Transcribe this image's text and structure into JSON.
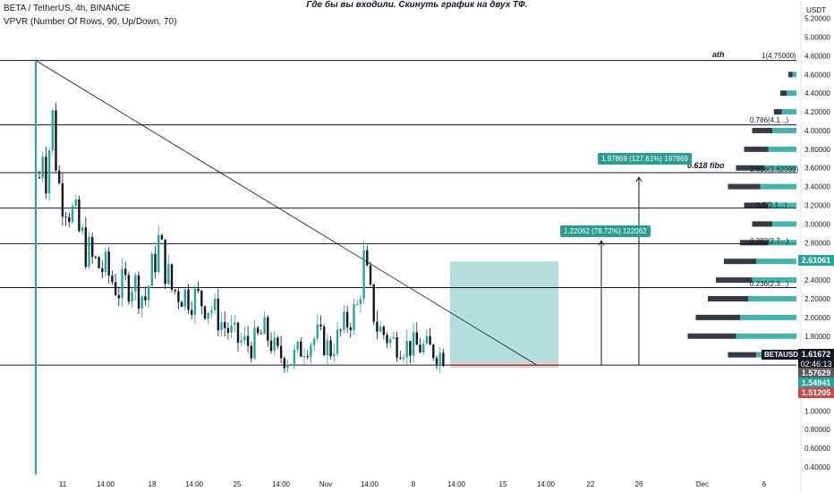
{
  "header": {
    "symbol_line": "BETA / TetherUS, 4h, BINANCE",
    "indicator_line": "VPVR (Number Of Rows, 90, Up/Down, 70)",
    "title": "Где бы вы входили. Скинуть график на двух ТФ."
  },
  "colors": {
    "up": "#26a69a",
    "down": "#131722",
    "teal_box": "#a7d8d2",
    "red_box": "#f6c9c9",
    "last_price": "#26a69a",
    "red_tag": "#c74b4b"
  },
  "price_tags": {
    "symbol": "BETAUSDT",
    "last": "1.61672",
    "countdown": "02:46:13",
    "tag1": "1.57629",
    "tag2": "1.54941",
    "tag3": "1.51205",
    "mid": "2.61061"
  },
  "annotations": {
    "ath": "ath",
    "fibo": "0.618 fibo",
    "measure1": "1.97869 (127.61%) 197869",
    "measure2": "1.22062 (78.72%) 122062",
    "fib1": "1(4.75000)",
    "fib0786": "0.786(4.1...)",
    "fib0618": "0.618(3.62099)",
    "fib05": "0.5(3.1...)",
    "fib0382": "0.382(2.7...)",
    "fib0236": "0.236(2.3...)"
  },
  "chart_data": {
    "type": "candlestick",
    "y_axis_unit": "USDT",
    "ylim": [
      0.3,
      5.3
    ],
    "y_ticks": [
      "5.20000",
      "5.00000",
      "4.80000",
      "4.60000",
      "4.40000",
      "4.20000",
      "4.00000",
      "3.80000",
      "3.60000",
      "3.40000",
      "3.20000",
      "3.00000",
      "2.80000",
      "2.60000",
      "2.40000",
      "2.20000",
      "2.00000",
      "1.80000",
      "1.60000",
      "1.40000",
      "1.20000",
      "1.00000",
      "0.80000",
      "0.60000",
      "0.40000"
    ],
    "y_tick_values": [
      5.2,
      5.0,
      4.8,
      4.6,
      4.4,
      4.2,
      4.0,
      3.8,
      3.6,
      3.4,
      3.2,
      3.0,
      2.8,
      2.6,
      2.4,
      2.2,
      2.0,
      1.8,
      1.6,
      1.4,
      1.2,
      1.0,
      0.8,
      0.6,
      0.4
    ],
    "x_ticks": [
      "11",
      "14:00",
      "18",
      "14:00",
      "25",
      "14:00",
      "Nov",
      "14:00",
      "8",
      "14:00",
      "15",
      "14:00",
      "22",
      "26",
      "Dec",
      "6"
    ],
    "x_tick_positions": [
      70,
      118,
      170,
      217,
      265,
      314,
      364,
      413,
      462,
      510,
      562,
      610,
      660,
      714,
      785,
      854
    ],
    "horizontal_levels": [
      4.75,
      4.06,
      3.55,
      3.17,
      2.79,
      2.32,
      1.49
    ],
    "price_series": [
      {
        "bar": 0,
        "value": 1.5
      },
      {
        "bar": 1,
        "value": 4.75
      },
      {
        "bar": 2,
        "value": 3.5
      },
      {
        "bar": 3,
        "value": 3.9
      },
      {
        "bar": 4,
        "value": 3.6
      },
      {
        "bar": 6,
        "value": 4.1
      },
      {
        "bar": 8,
        "value": 3.4
      },
      {
        "bar": 10,
        "value": 3.3
      },
      {
        "bar": 14,
        "value": 2.9
      },
      {
        "bar": 18,
        "value": 2.6
      },
      {
        "bar": 22,
        "value": 2.5
      },
      {
        "bar": 26,
        "value": 2.3
      },
      {
        "bar": 30,
        "value": 2.4
      },
      {
        "bar": 34,
        "value": 2.2
      },
      {
        "bar": 38,
        "value": 2.8
      },
      {
        "bar": 42,
        "value": 2.3
      },
      {
        "bar": 46,
        "value": 2.25
      },
      {
        "bar": 50,
        "value": 2.2
      },
      {
        "bar": 54,
        "value": 2.1
      },
      {
        "bar": 58,
        "value": 1.9
      },
      {
        "bar": 62,
        "value": 1.75
      },
      {
        "bar": 66,
        "value": 1.7
      },
      {
        "bar": 70,
        "value": 1.85
      },
      {
        "bar": 74,
        "value": 1.6
      },
      {
        "bar": 78,
        "value": 1.55
      },
      {
        "bar": 82,
        "value": 1.7
      },
      {
        "bar": 86,
        "value": 1.8
      },
      {
        "bar": 90,
        "value": 1.65
      },
      {
        "bar": 94,
        "value": 1.9
      },
      {
        "bar": 98,
        "value": 2.1
      },
      {
        "bar": 100,
        "value": 2.6
      },
      {
        "bar": 102,
        "value": 2.2
      },
      {
        "bar": 104,
        "value": 1.9
      },
      {
        "bar": 108,
        "value": 1.75
      },
      {
        "bar": 112,
        "value": 1.7
      },
      {
        "bar": 118,
        "value": 1.68
      },
      {
        "bar": 124,
        "value": 1.6
      }
    ],
    "volume_profile": [
      {
        "price": 4.6,
        "up": 0.05,
        "down": 0.05
      },
      {
        "price": 4.4,
        "up": 0.12,
        "down": 0.08
      },
      {
        "price": 4.2,
        "up": 0.18,
        "down": 0.1
      },
      {
        "price": 4.0,
        "up": 0.3,
        "down": 0.25
      },
      {
        "price": 3.8,
        "up": 0.35,
        "down": 0.3
      },
      {
        "price": 3.6,
        "up": 0.4,
        "down": 0.35
      },
      {
        "price": 3.4,
        "up": 0.45,
        "down": 0.4
      },
      {
        "price": 3.2,
        "up": 0.35,
        "down": 0.3
      },
      {
        "price": 3.0,
        "up": 0.3,
        "down": 0.25
      },
      {
        "price": 2.8,
        "up": 0.35,
        "down": 0.35
      },
      {
        "price": 2.6,
        "up": 0.5,
        "down": 0.4
      },
      {
        "price": 2.4,
        "up": 0.55,
        "down": 0.45
      },
      {
        "price": 2.2,
        "up": 0.6,
        "down": 0.5
      },
      {
        "price": 2.0,
        "up": 0.7,
        "down": 0.55
      },
      {
        "price": 1.8,
        "up": 0.75,
        "down": 0.6
      },
      {
        "price": 1.6,
        "up": 0.5,
        "down": 0.35
      }
    ]
  }
}
